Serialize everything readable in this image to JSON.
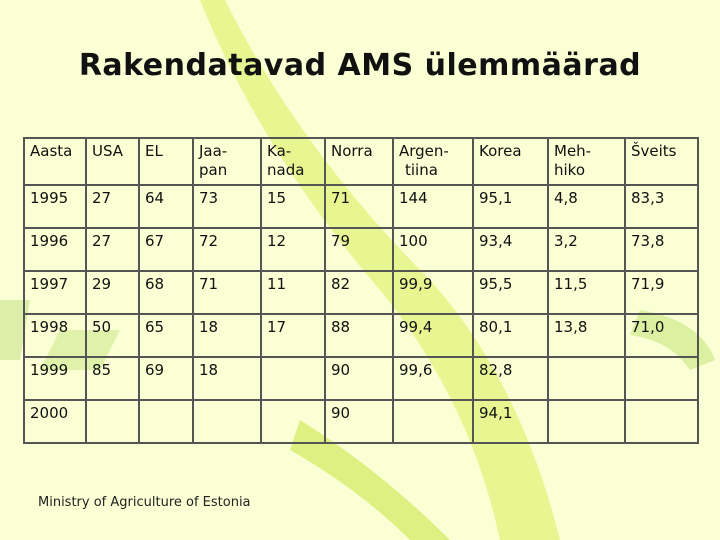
{
  "title": "Rakendatavad AMS ülemmäärad",
  "footer": "Ministry of Agriculture of Estonia",
  "table": {
    "headers": [
      [
        "Aasta"
      ],
      [
        "USA"
      ],
      [
        "EL"
      ],
      [
        "Jaa-",
        "pan"
      ],
      [
        "Ka-",
        "nada"
      ],
      [
        "Norra"
      ],
      [
        "Argen-",
        "tiina"
      ],
      [
        "Korea"
      ],
      [
        "Meh-",
        "hiko"
      ],
      [
        "Šveits"
      ]
    ],
    "rows": [
      [
        "1995",
        "27",
        "64",
        "73",
        "15",
        "71",
        "144",
        "95,1",
        "4,8",
        "83,3"
      ],
      [
        "1996",
        "27",
        "67",
        "72",
        "12",
        "79",
        "100",
        "93,4",
        "3,2",
        "73,8"
      ],
      [
        "1997",
        "29",
        "68",
        "71",
        "11",
        "82",
        "99,9",
        "95,5",
        "11,5",
        "71,9"
      ],
      [
        "1998",
        "50",
        "65",
        "18",
        "17",
        "88",
        "99,4",
        "80,1",
        "13,8",
        "71,0"
      ],
      [
        "1999",
        "85",
        "69",
        "18",
        "",
        "90",
        "99,6",
        "82,8",
        "",
        ""
      ],
      [
        "2000",
        "",
        "",
        "",
        "",
        "90",
        "",
        "94,1",
        "",
        ""
      ]
    ]
  }
}
